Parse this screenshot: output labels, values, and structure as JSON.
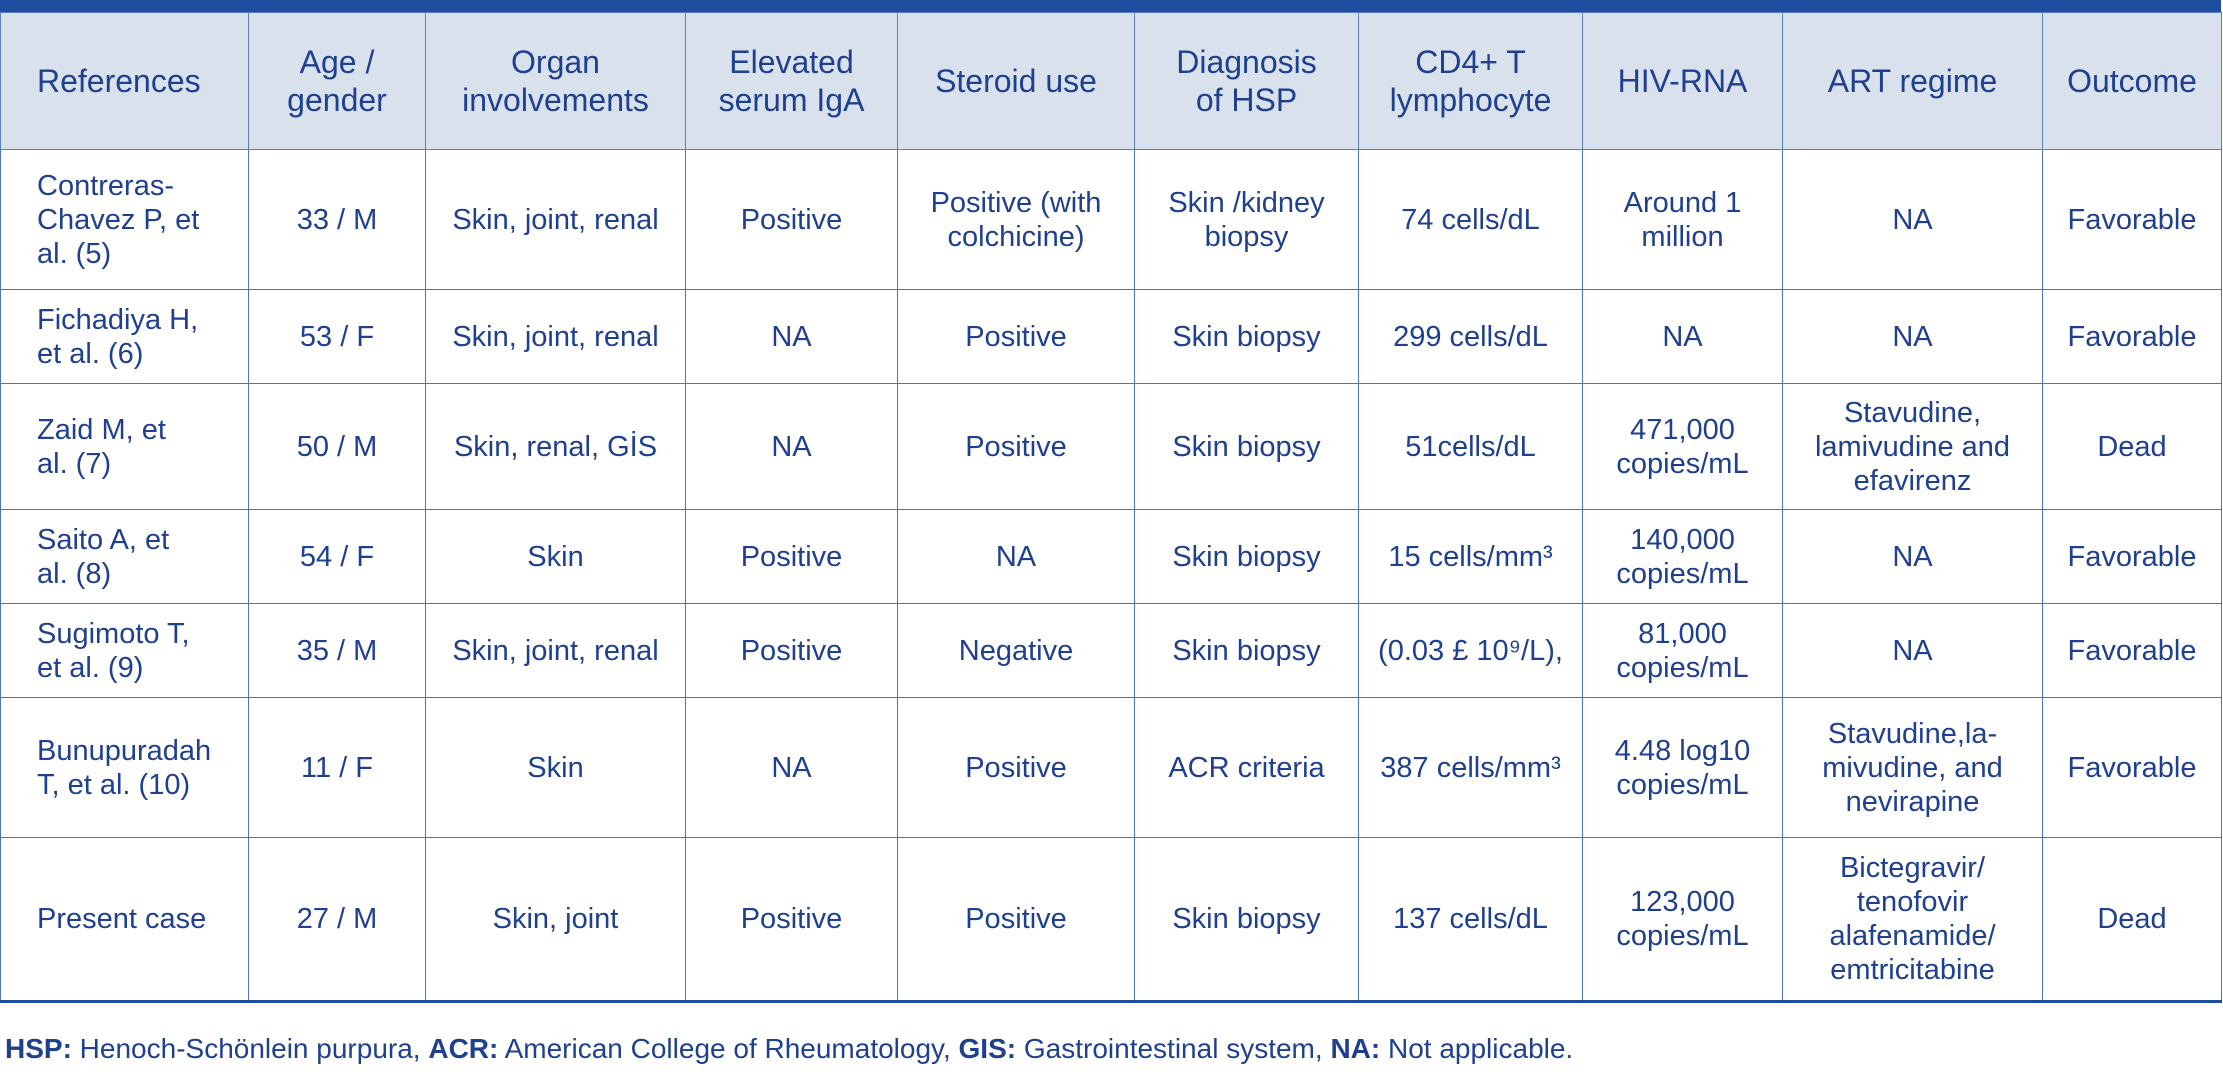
{
  "columns": [
    "References",
    "Age /\ngender",
    "Organ\ninvolvements",
    "Elevated\nserum IgA",
    "Steroid use",
    "Diagnosis\nof HSP",
    "CD4+ T\nlymphocyte",
    "HIV-RNA",
    "ART regime",
    "Outcome"
  ],
  "rows": [
    [
      "Contreras-\nChavez P, et\nal. (5)",
      "33 / M",
      "Skin, joint, renal",
      "Positive",
      "Positive (with\ncolchicine)",
      "Skin /kidney\nbiopsy",
      "74 cells/dL",
      "Around 1\nmillion",
      "NA",
      "Favorable"
    ],
    [
      "Fichadiya H,\net al. (6)",
      "53 / F",
      "Skin, joint, renal",
      "NA",
      "Positive",
      "Skin biopsy",
      "299 cells/dL",
      "NA",
      "NA",
      "Favorable"
    ],
    [
      "Zaid M, et\nal. (7)",
      "50 / M",
      "Skin, renal, GİS",
      "NA",
      "Positive",
      "Skin biopsy",
      "51cells/dL",
      "471,000\ncopies/mL",
      "Stavudine,\nlamivudine and\nefavirenz",
      "Dead"
    ],
    [
      "Saito A, et\nal. (8)",
      "54 / F",
      "Skin",
      "Positive",
      "NA",
      "Skin biopsy",
      "15 cells/mm³",
      "140,000\ncopies/mL",
      "NA",
      "Favorable"
    ],
    [
      "Sugimoto T,\net al. (9)",
      "35 / M",
      "Skin, joint, renal",
      "Positive",
      "Negative",
      "Skin biopsy",
      "(0.03 £ 10⁹/L),",
      "81,000\ncopies/mL",
      "NA",
      "Favorable"
    ],
    [
      "Bunupuradah\nT, et al. (10)",
      "11 / F",
      "Skin",
      "NA",
      "Positive",
      "ACR criteria",
      "387 cells/mm³",
      "4.48 log10\ncopies/mL",
      "Stavudine,la-\nmivudine, and\nnevirapine",
      "Favorable"
    ],
    [
      "Present case",
      "27 / M",
      "Skin, joint",
      "Positive",
      "Positive",
      "Skin biopsy",
      "137 cells/dL",
      "123,000\ncopies/mL",
      "Bictegravir/\ntenofovir\nalafenamide/\nemtricitabine",
      "Dead"
    ]
  ],
  "footnote": [
    {
      "abbr": "HSP:",
      "text": " Henoch-Schönlein purpura, "
    },
    {
      "abbr": "ACR:",
      "text": " American College of Rheumatology, "
    },
    {
      "abbr": "GIS:",
      "text": " Gastrointestinal system, "
    },
    {
      "abbr": "NA:",
      "text": " Not applicable."
    }
  ]
}
